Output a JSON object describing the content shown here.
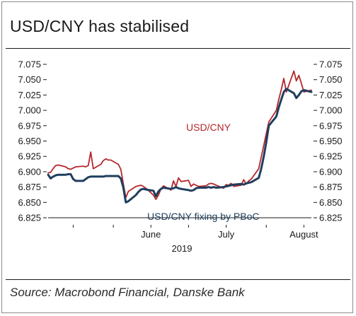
{
  "title": "USD/CNY has stabilised",
  "source": "Source: Macrobond Financial, Danske Bank",
  "colors": {
    "usdcny": "#b5262b",
    "fixing": "#1f3e5e",
    "axis": "#1a1a1a"
  },
  "chart_data": {
    "type": "line",
    "title": "USD/CNY has stabilised",
    "xlabel": "2019",
    "x_tick_labels": [
      "June",
      "July",
      "August"
    ],
    "x": [
      "2019-05-06",
      "2019-05-07",
      "2019-05-08",
      "2019-05-09",
      "2019-05-10",
      "2019-05-13",
      "2019-05-14",
      "2019-05-15",
      "2019-05-16",
      "2019-05-17",
      "2019-05-20",
      "2019-05-21",
      "2019-05-22",
      "2019-05-23",
      "2019-05-24",
      "2019-05-27",
      "2019-05-28",
      "2019-05-29",
      "2019-05-30",
      "2019-05-31",
      "2019-06-03",
      "2019-06-04",
      "2019-06-05",
      "2019-06-06",
      "2019-06-07",
      "2019-06-10",
      "2019-06-11",
      "2019-06-12",
      "2019-06-13",
      "2019-06-14",
      "2019-06-17",
      "2019-06-18",
      "2019-06-19",
      "2019-06-20",
      "2019-06-21",
      "2019-06-24",
      "2019-06-25",
      "2019-06-26",
      "2019-06-27",
      "2019-06-28",
      "2019-07-01",
      "2019-07-02",
      "2019-07-03",
      "2019-07-04",
      "2019-07-05",
      "2019-07-08",
      "2019-07-09",
      "2019-07-10",
      "2019-07-11",
      "2019-07-12",
      "2019-07-15",
      "2019-07-16",
      "2019-07-17",
      "2019-07-18",
      "2019-07-19",
      "2019-07-22",
      "2019-07-23",
      "2019-07-24",
      "2019-07-25",
      "2019-07-26",
      "2019-07-29",
      "2019-07-30",
      "2019-07-31",
      "2019-08-01",
      "2019-08-02",
      "2019-08-05",
      "2019-08-06",
      "2019-08-07",
      "2019-08-08",
      "2019-08-09",
      "2019-08-12",
      "2019-08-13",
      "2019-08-14",
      "2019-08-15",
      "2019-08-16",
      "2019-08-19"
    ],
    "x_range": [
      "2019-05-06",
      "2019-08-19"
    ],
    "ylim": [
      6.825,
      7.075
    ],
    "y_ticks": [
      "6.825",
      "6.850",
      "6.875",
      "6.900",
      "6.925",
      "6.950",
      "6.975",
      "7.000",
      "7.025",
      "7.050",
      "7.075"
    ],
    "y_axis_both_sides": true,
    "grid": false,
    "series": [
      {
        "name": "USD/CNY",
        "values": [
          6.898,
          6.899,
          6.905,
          6.91,
          6.911,
          6.908,
          6.905,
          6.904,
          6.906,
          6.908,
          6.909,
          6.908,
          6.91,
          6.932,
          6.905,
          6.912,
          6.918,
          6.921,
          6.919,
          6.919,
          6.912,
          6.904,
          6.88,
          6.858,
          6.868,
          6.876,
          6.877,
          6.878,
          6.876,
          6.873,
          6.862,
          6.855,
          6.862,
          6.872,
          6.877,
          6.87,
          6.885,
          6.876,
          6.89,
          6.884,
          6.886,
          6.876,
          6.88,
          6.878,
          6.876,
          6.877,
          6.88,
          6.881,
          6.88,
          6.878,
          6.873,
          6.879,
          6.878,
          6.881,
          6.876,
          6.878,
          6.887,
          6.88,
          6.885,
          6.888,
          6.905,
          6.924,
          6.943,
          6.962,
          6.981,
          7.0,
          7.018,
          7.034,
          7.052,
          7.03,
          7.064,
          7.048,
          7.057,
          7.044,
          7.03,
          7.033
        ]
      },
      {
        "name": "USD/CNY fixing by PBoC",
        "values": [
          6.895,
          6.889,
          6.892,
          6.894,
          6.895,
          6.895,
          6.896,
          6.896,
          6.888,
          6.885,
          6.885,
          6.888,
          6.891,
          6.892,
          6.892,
          6.892,
          6.892,
          6.893,
          6.893,
          6.893,
          6.893,
          6.889,
          6.874,
          6.85,
          6.852,
          6.862,
          6.867,
          6.871,
          6.872,
          6.871,
          6.869,
          6.86,
          6.868,
          6.872,
          6.874,
          6.872,
          6.873,
          6.875,
          6.873,
          6.872,
          6.87,
          6.869,
          6.87,
          6.873,
          6.874,
          6.874,
          6.875,
          6.874,
          6.875,
          6.874,
          6.875,
          6.876,
          6.877,
          6.878,
          6.879,
          6.88,
          6.879,
          6.881,
          6.882,
          6.883,
          6.89,
          6.905,
          6.925,
          6.948,
          6.975,
          6.99,
          7.005,
          7.018,
          7.03,
          7.035,
          7.028,
          7.02,
          7.025,
          7.031,
          7.033,
          7.03
        ]
      }
    ],
    "annotations": [
      "USD/CNY",
      "USD/CNY fixing by PBoC"
    ]
  }
}
